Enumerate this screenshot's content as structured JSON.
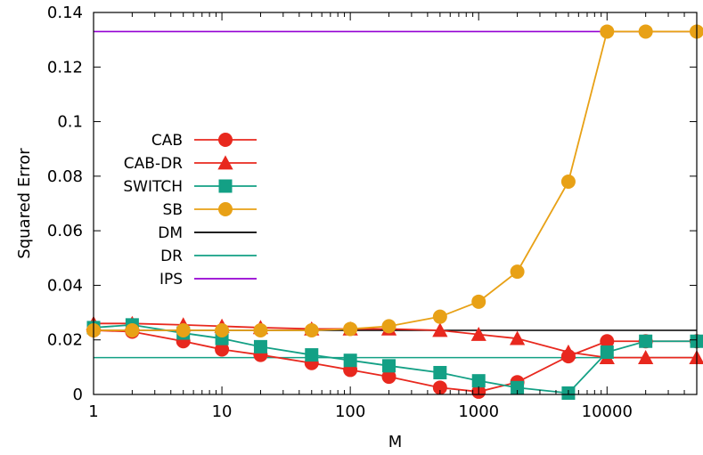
{
  "chart_data": {
    "type": "line",
    "xlabel": "M",
    "ylabel": "Squared Error",
    "xscale": "log",
    "xlim": [
      1,
      50000
    ],
    "ylim": [
      0,
      0.14
    ],
    "x_ticks": [
      1,
      10,
      100,
      1000,
      10000
    ],
    "x_tick_labels": [
      "1",
      "10",
      "100",
      "1000",
      "10000"
    ],
    "y_ticks": [
      0,
      0.02,
      0.04,
      0.06,
      0.08,
      0.1,
      0.12,
      0.14
    ],
    "y_tick_labels": [
      "0",
      "0.02",
      "0.04",
      "0.06",
      "0.08",
      "0.1",
      "0.12",
      "0.14"
    ],
    "grid": false,
    "legend_position": "center-left",
    "x": [
      1,
      2,
      5,
      10,
      20,
      50,
      100,
      200,
      500,
      1000,
      2000,
      5000,
      10000,
      20000,
      50000
    ],
    "series": [
      {
        "name": "CAB",
        "marker": "circle",
        "color": "#e8281e",
        "values": [
          0.0235,
          0.023,
          0.0195,
          0.0165,
          0.0145,
          0.0115,
          0.009,
          0.0065,
          0.0025,
          0.001,
          0.0045,
          0.014,
          0.0195,
          0.0195,
          0.0195
        ]
      },
      {
        "name": "CAB-DR",
        "marker": "triangle",
        "color": "#e8281e",
        "values": [
          0.026,
          0.026,
          0.0255,
          0.025,
          0.0245,
          0.024,
          0.024,
          0.024,
          0.0235,
          0.022,
          0.0205,
          0.0155,
          0.0135,
          0.0135,
          0.0135
        ]
      },
      {
        "name": "SWITCH",
        "marker": "square",
        "color": "#13a085",
        "values": [
          0.0245,
          0.0255,
          0.0225,
          0.0205,
          0.0175,
          0.0145,
          0.0125,
          0.0105,
          0.008,
          0.005,
          0.0025,
          0.0005,
          0.0155,
          0.0195,
          0.0195
        ]
      },
      {
        "name": "SB",
        "marker": "circle",
        "color": "#e8a116",
        "values": [
          0.0235,
          0.0235,
          0.0235,
          0.0235,
          0.0235,
          0.0235,
          0.024,
          0.025,
          0.0285,
          0.034,
          0.045,
          0.078,
          0.133,
          0.133,
          0.133
        ]
      },
      {
        "name": "DM",
        "marker": "none",
        "color": "#000000",
        "constant": 0.0235
      },
      {
        "name": "DR",
        "marker": "none",
        "color": "#13a085",
        "constant": 0.0135
      },
      {
        "name": "IPS",
        "marker": "none",
        "color": "#9400d3",
        "constant": 0.133
      }
    ]
  }
}
